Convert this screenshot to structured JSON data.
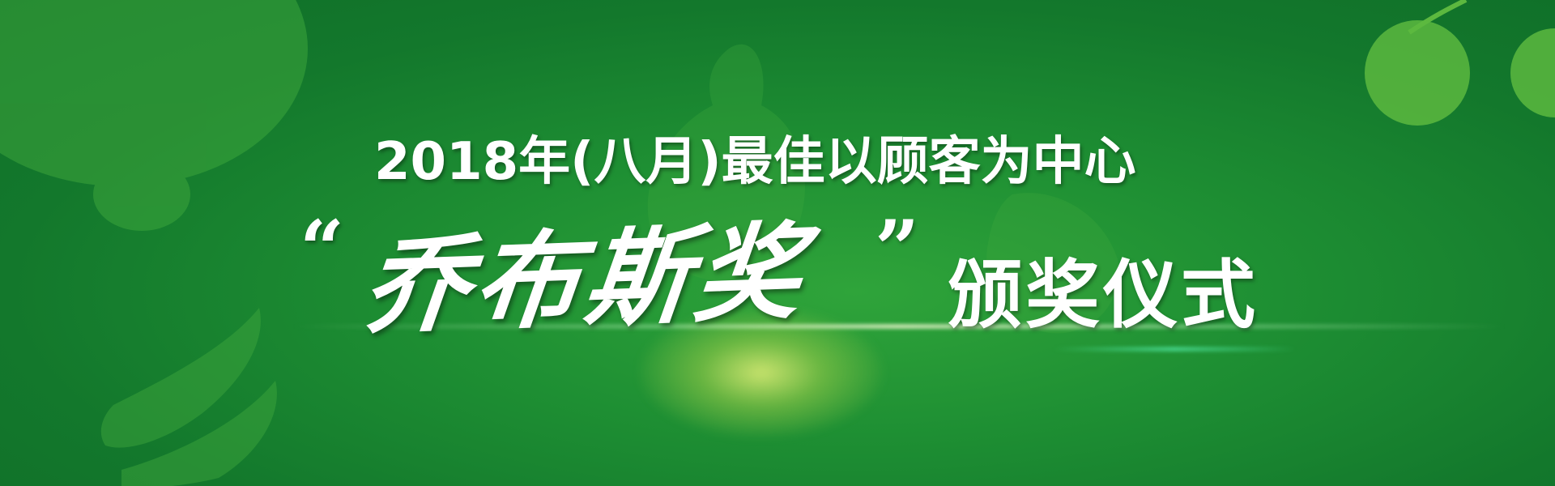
{
  "banner": {
    "title_line1": "2018年(八月)最佳以顾客为中心",
    "quote_open": "“",
    "award_name": "乔布斯奖",
    "quote_close": "”",
    "award_suffix": "颁奖仪式"
  },
  "colors": {
    "background": "#1e8f33",
    "deco_light": "#3da53c",
    "text": "#ffffff",
    "glow": "#e6f078"
  },
  "decorations": [
    "cherry-icon",
    "fruit-silhouette-icon",
    "banana-silhouette-icon"
  ]
}
